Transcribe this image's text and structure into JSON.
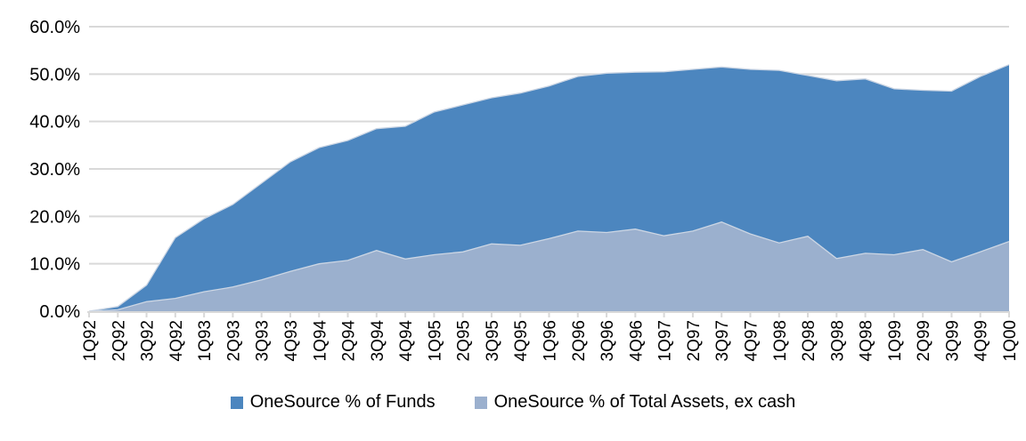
{
  "chart_data": {
    "type": "area",
    "title": "",
    "xlabel": "",
    "ylabel": "",
    "legend_position": "bottom",
    "grid": true,
    "overlapping_series": true,
    "categories": [
      "1Q92",
      "2Q92",
      "3Q92",
      "4Q92",
      "1Q93",
      "2Q93",
      "3Q93",
      "4Q93",
      "1Q94",
      "2Q94",
      "3Q94",
      "4Q94",
      "1Q95",
      "2Q95",
      "3Q95",
      "4Q95",
      "1Q96",
      "2Q96",
      "3Q96",
      "4Q96",
      "1Q97",
      "2Q97",
      "3Q97",
      "4Q97",
      "1Q98",
      "2Q98",
      "3Q98",
      "4Q98",
      "1Q99",
      "2Q99",
      "3Q99",
      "4Q99",
      "1Q00"
    ],
    "series": [
      {
        "name": "OneSource % of Funds",
        "color": "#4c86bf",
        "values": [
          0.0,
          1.0,
          5.5,
          15.5,
          19.5,
          22.5,
          27.0,
          31.5,
          34.5,
          36.0,
          38.5,
          39.0,
          42.0,
          43.5,
          45.0,
          46.0,
          47.5,
          49.5,
          50.2,
          50.4,
          50.5,
          51.0,
          51.5,
          51.0,
          50.8,
          49.7,
          48.6,
          49.0,
          46.9,
          46.6,
          46.4,
          49.5,
          52.0
        ]
      },
      {
        "name": "OneSource % of Total Assets, ex cash",
        "color": "#9bb0ce",
        "values": [
          0.0,
          0.3,
          2.0,
          2.7,
          4.1,
          5.1,
          6.6,
          8.4,
          10.0,
          10.7,
          12.8,
          11.0,
          11.9,
          12.5,
          14.2,
          13.9,
          15.3,
          16.9,
          16.6,
          17.3,
          15.9,
          16.9,
          18.8,
          16.3,
          14.4,
          15.8,
          11.1,
          12.2,
          11.9,
          13.0,
          10.4,
          12.5,
          14.7
        ]
      }
    ],
    "y_axis": {
      "min": 0,
      "max": 60,
      "step": 10,
      "tick_labels": [
        "0.0%",
        "10.0%",
        "20.0%",
        "30.0%",
        "40.0%",
        "50.0%",
        "60.0%"
      ]
    },
    "colors": {
      "gridline": "#d9d9d9",
      "axis": "#d9d9d9",
      "text": "#000000",
      "background": "#ffffff",
      "area_edge": "#ccd6e4"
    }
  }
}
